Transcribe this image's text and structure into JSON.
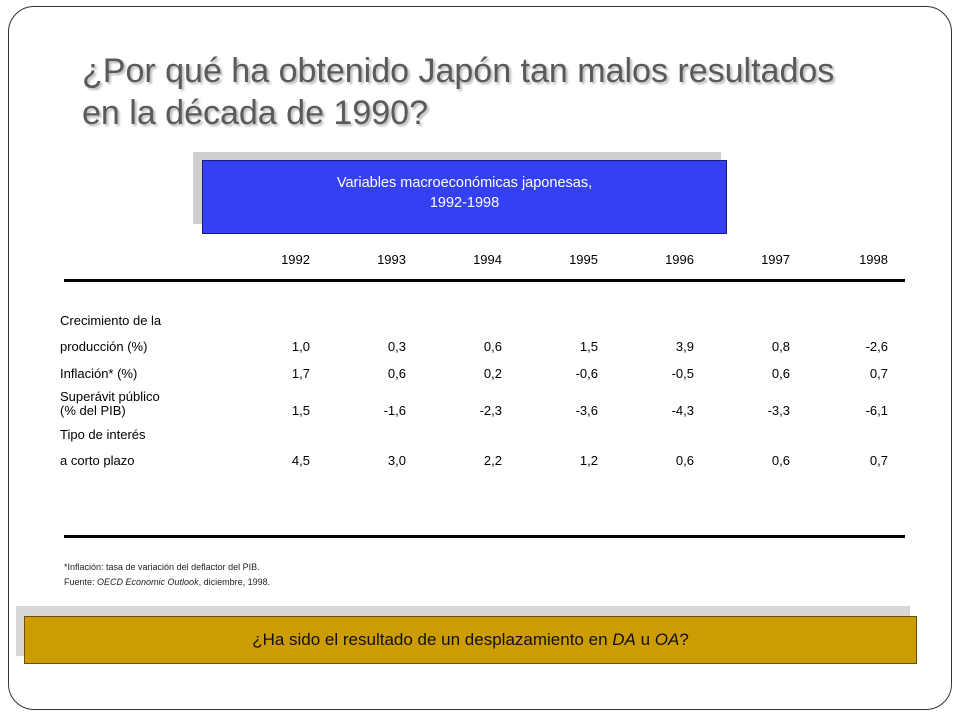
{
  "title": {
    "line1": "¿Por qué ha obtenido Japón tan malos resultados",
    "line2": "en la década de 1990?"
  },
  "table_header": {
    "line1": "Variables macroeconómicas japonesas,",
    "line2": "1992-1998"
  },
  "years": [
    "1992",
    "1993",
    "1994",
    "1995",
    "1996",
    "1997",
    "1998"
  ],
  "rows": [
    {
      "label_top": "Crecimiento de la",
      "label": "producción (%)",
      "values": [
        "1,0",
        "0,3",
        "0,6",
        "1,5",
        "3,9",
        "0,8",
        "-2,6"
      ]
    },
    {
      "label_top": "",
      "label": "Inflación* (%)",
      "values": [
        "1,7",
        "0,6",
        "0,2",
        "-0,6",
        "-0,5",
        "0,6",
        "0,7"
      ]
    },
    {
      "label_top": "Superávit público",
      "label": "(% del PIB)",
      "values": [
        "1,5",
        "-1,6",
        "-2,3",
        "-3,6",
        "-4,3",
        "-3,3",
        "-6,1"
      ]
    },
    {
      "label_top": "Tipo de interés",
      "label": "a corto plazo",
      "values": [
        "4,5",
        "3,0",
        "2,2",
        "1,2",
        "0,6",
        "0,6",
        "0,7"
      ]
    }
  ],
  "footnotes": {
    "inflation_note": "*Inflación: tasa de variación del deflactor del PIB.",
    "source_prefix": "Fuente: ",
    "source_name": "OECD Economic Outlook",
    "source_suffix": ", diciembre, 1998."
  },
  "question": {
    "prefix": "¿Ha sido el resultado de un desplazamiento en ",
    "da": "DA",
    "middle": " u ",
    "oa": "OA",
    "suffix": "?"
  },
  "colors": {
    "header_bg": "#3440f2",
    "question_bg": "#cc9c00",
    "title_text": "#5a5a5a"
  }
}
